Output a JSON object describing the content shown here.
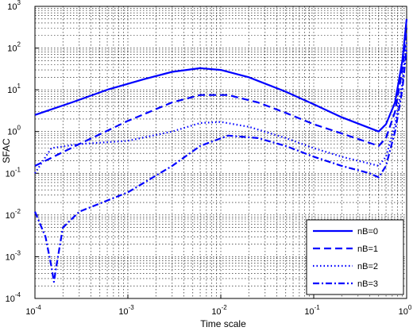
{
  "chart_data": {
    "type": "line",
    "title": "",
    "xlabel": "Time scale",
    "ylabel": "SFAC",
    "x_scale": "log",
    "y_scale": "log",
    "xlim": [
      0.0001,
      1
    ],
    "ylim": [
      0.0001,
      1000
    ],
    "grid": true,
    "legend_position": "bottom-right",
    "x_ticks": [
      {
        "value": 0.0001,
        "base": "10",
        "exp": "-4"
      },
      {
        "value": 0.001,
        "base": "10",
        "exp": "-3"
      },
      {
        "value": 0.01,
        "base": "10",
        "exp": "-2"
      },
      {
        "value": 0.1,
        "base": "10",
        "exp": "-1"
      },
      {
        "value": 1,
        "base": "10",
        "exp": "0"
      }
    ],
    "y_ticks": [
      {
        "value": 0.0001,
        "base": "10",
        "exp": "-4"
      },
      {
        "value": 0.001,
        "base": "10",
        "exp": "-3"
      },
      {
        "value": 0.01,
        "base": "10",
        "exp": "-2"
      },
      {
        "value": 0.1,
        "base": "10",
        "exp": "-1"
      },
      {
        "value": 1,
        "base": "10",
        "exp": "0"
      },
      {
        "value": 10,
        "base": "10",
        "exp": "1"
      },
      {
        "value": 100,
        "base": "10",
        "exp": "2"
      },
      {
        "value": 1000,
        "base": "10",
        "exp": "3"
      }
    ],
    "line_color": "#0000ff",
    "series": [
      {
        "name": "nB=0",
        "style": "solid",
        "points": [
          [
            0.0001,
            2.5
          ],
          [
            0.00025,
            5
          ],
          [
            0.0006,
            10
          ],
          [
            0.0015,
            18
          ],
          [
            0.003,
            27
          ],
          [
            0.006,
            33
          ],
          [
            0.01,
            30
          ],
          [
            0.02,
            20
          ],
          [
            0.05,
            9
          ],
          [
            0.1,
            4.5
          ],
          [
            0.2,
            2.2
          ],
          [
            0.5,
            1.0
          ],
          [
            0.6,
            1.5
          ],
          [
            0.75,
            5
          ],
          [
            0.9,
            50
          ],
          [
            1.0,
            500
          ]
        ]
      },
      {
        "name": "nB=1",
        "style": "dashed",
        "points": [
          [
            0.0001,
            0.15
          ],
          [
            0.0003,
            0.5
          ],
          [
            0.001,
            1.8
          ],
          [
            0.003,
            5
          ],
          [
            0.006,
            7.5
          ],
          [
            0.012,
            7.5
          ],
          [
            0.025,
            5
          ],
          [
            0.05,
            2.8
          ],
          [
            0.1,
            1.5
          ],
          [
            0.2,
            0.9
          ],
          [
            0.5,
            0.45
          ],
          [
            0.6,
            0.7
          ],
          [
            0.75,
            3
          ],
          [
            0.9,
            30
          ],
          [
            1.0,
            300
          ]
        ]
      },
      {
        "name": "nB=2",
        "style": "dotted",
        "points": [
          [
            0.0001,
            0.1
          ],
          [
            0.00015,
            0.4
          ],
          [
            0.0003,
            0.5
          ],
          [
            0.001,
            0.6
          ],
          [
            0.003,
            1.0
          ],
          [
            0.006,
            1.6
          ],
          [
            0.01,
            1.7
          ],
          [
            0.02,
            1.3
          ],
          [
            0.05,
            0.7
          ],
          [
            0.1,
            0.4
          ],
          [
            0.2,
            0.25
          ],
          [
            0.5,
            0.15
          ],
          [
            0.6,
            0.25
          ],
          [
            0.75,
            1.5
          ],
          [
            0.9,
            15
          ],
          [
            1.0,
            150
          ]
        ]
      },
      {
        "name": "nB=3",
        "style": "dashdot",
        "points": [
          [
            0.0001,
            0.012
          ],
          [
            0.00013,
            0.003
          ],
          [
            0.00015,
            0.0006
          ],
          [
            0.00016,
            0.00025
          ],
          [
            0.00017,
            0.0006
          ],
          [
            0.0002,
            0.005
          ],
          [
            0.0003,
            0.012
          ],
          [
            0.001,
            0.035
          ],
          [
            0.003,
            0.15
          ],
          [
            0.006,
            0.45
          ],
          [
            0.012,
            0.8
          ],
          [
            0.025,
            0.7
          ],
          [
            0.05,
            0.45
          ],
          [
            0.1,
            0.25
          ],
          [
            0.2,
            0.15
          ],
          [
            0.4,
            0.1
          ],
          [
            0.5,
            0.08
          ],
          [
            0.6,
            0.15
          ],
          [
            0.75,
            1
          ],
          [
            0.9,
            10
          ],
          [
            1.0,
            100
          ]
        ]
      }
    ]
  }
}
